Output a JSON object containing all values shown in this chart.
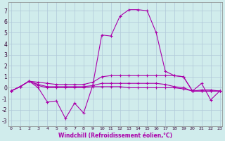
{
  "xlabel": "Windchill (Refroidissement éolien,°C)",
  "x_ticks": [
    0,
    1,
    2,
    3,
    4,
    5,
    6,
    7,
    8,
    9,
    10,
    11,
    12,
    13,
    14,
    15,
    16,
    17,
    18,
    19,
    20,
    21,
    22,
    23
  ],
  "ylim": [
    -3.5,
    7.8
  ],
  "xlim": [
    -0.3,
    23.3
  ],
  "yticks": [
    -3,
    -2,
    -1,
    0,
    1,
    2,
    3,
    4,
    5,
    6,
    7
  ],
  "background_color": "#d0ecec",
  "grid_color": "#b0c8d8",
  "line_color": "#aa00aa",
  "lines": [
    {
      "x": [
        0,
        1,
        2,
        3,
        4,
        5,
        6,
        7,
        8,
        9,
        10,
        11,
        12,
        13,
        14,
        15,
        16,
        17,
        18,
        19,
        20,
        21,
        22,
        23
      ],
      "y": [
        -0.3,
        0.1,
        0.6,
        0.0,
        -1.3,
        -1.2,
        -2.8,
        -1.4,
        -2.3,
        0.2,
        4.8,
        4.7,
        6.5,
        7.1,
        7.1,
        7.0,
        5.0,
        1.5,
        1.1,
        1.0,
        -0.3,
        0.4,
        -1.1,
        -0.3
      ]
    },
    {
      "x": [
        0,
        1,
        2,
        3,
        4,
        5,
        6,
        7,
        8,
        9,
        10,
        11,
        12,
        13,
        14,
        15,
        16,
        17,
        18,
        19,
        20,
        21,
        22,
        23
      ],
      "y": [
        -0.3,
        0.1,
        0.6,
        0.5,
        0.4,
        0.3,
        0.3,
        0.3,
        0.3,
        0.5,
        1.0,
        1.1,
        1.1,
        1.1,
        1.1,
        1.1,
        1.1,
        1.1,
        1.1,
        1.0,
        -0.3,
        -0.2,
        -0.2,
        -0.3
      ]
    },
    {
      "x": [
        0,
        1,
        2,
        3,
        4,
        5,
        6,
        7,
        8,
        9,
        10,
        11,
        12,
        13,
        14,
        15,
        16,
        17,
        18,
        19,
        20,
        21,
        22,
        23
      ],
      "y": [
        -0.3,
        0.1,
        0.6,
        0.3,
        0.1,
        0.1,
        0.1,
        0.1,
        0.1,
        0.2,
        0.4,
        0.4,
        0.4,
        0.4,
        0.4,
        0.4,
        0.4,
        0.3,
        0.1,
        0.0,
        -0.3,
        -0.3,
        -0.3,
        -0.3
      ]
    },
    {
      "x": [
        0,
        1,
        2,
        3,
        4,
        5,
        6,
        7,
        8,
        9,
        10,
        11,
        12,
        13,
        14,
        15,
        16,
        17,
        18,
        19,
        20,
        21,
        22,
        23
      ],
      "y": [
        -0.3,
        0.1,
        0.6,
        0.2,
        0.0,
        0.0,
        0.0,
        0.0,
        0.0,
        0.1,
        0.1,
        0.1,
        0.1,
        0.0,
        0.0,
        0.0,
        0.0,
        0.0,
        0.0,
        -0.1,
        -0.3,
        -0.3,
        -0.3,
        -0.3
      ]
    }
  ]
}
